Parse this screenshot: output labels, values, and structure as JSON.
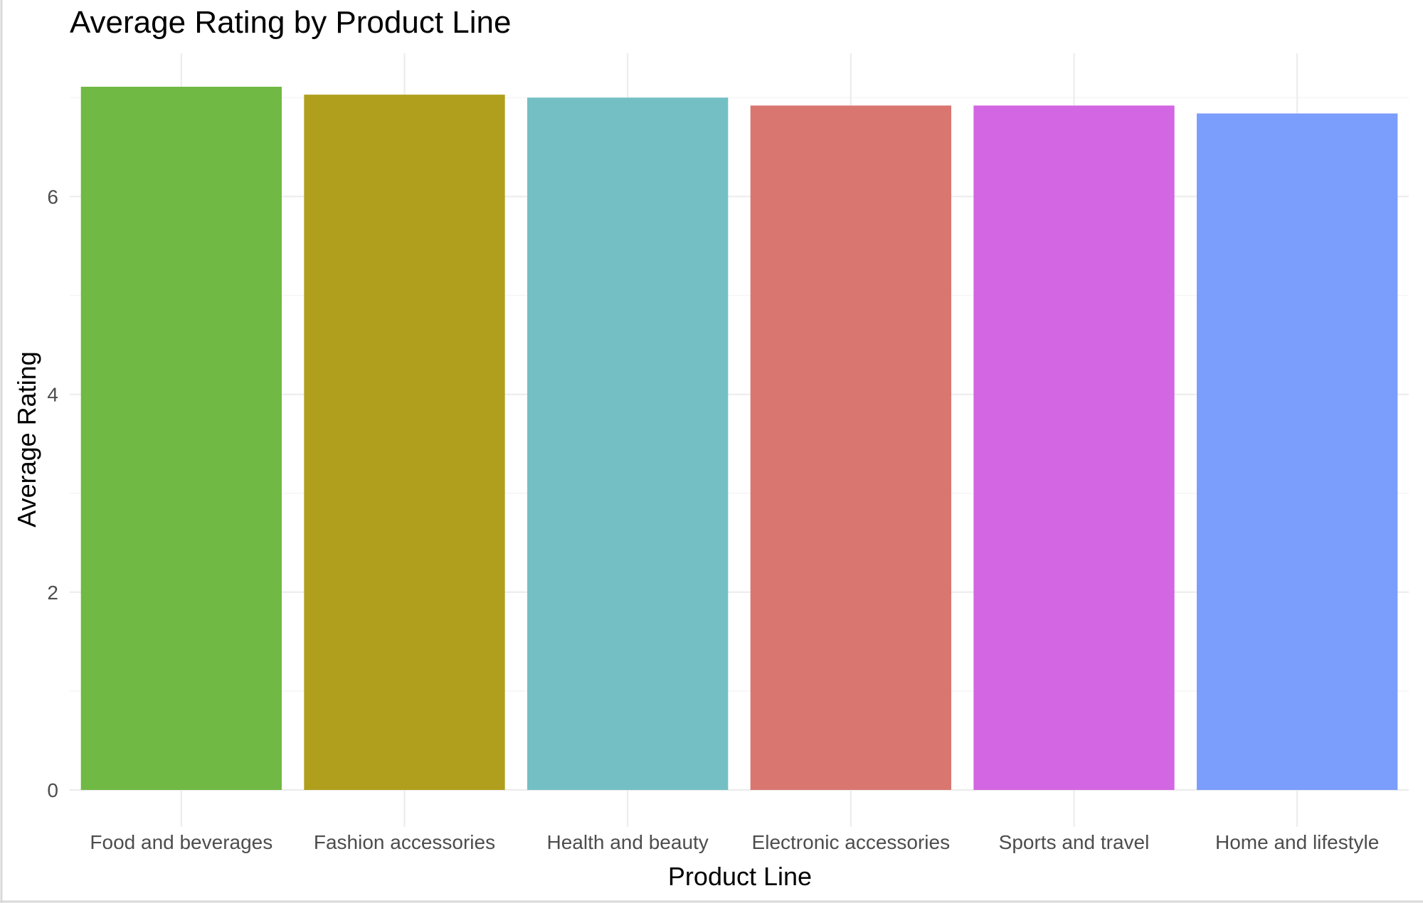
{
  "chart_data": {
    "type": "bar",
    "title": "Average Rating by Product Line",
    "xlabel": "Product Line",
    "ylabel": "Average Rating",
    "categories": [
      "Food and beverages",
      "Fashion accessories",
      "Health and beauty",
      "Electronic accessories",
      "Sports and travel",
      "Home and lifestyle"
    ],
    "values": [
      7.11,
      7.03,
      7.0,
      6.92,
      6.92,
      6.84
    ],
    "colors": [
      "#70b944",
      "#b09f1c",
      "#73bfc4",
      "#d97670",
      "#d366e2",
      "#7b9dfc"
    ],
    "ylim": [
      0,
      7.5
    ],
    "yticks": [
      0,
      2,
      4,
      6
    ],
    "ytick_labels": [
      "0",
      "2",
      "4",
      "6"
    ],
    "grid": true,
    "legend": "none"
  }
}
